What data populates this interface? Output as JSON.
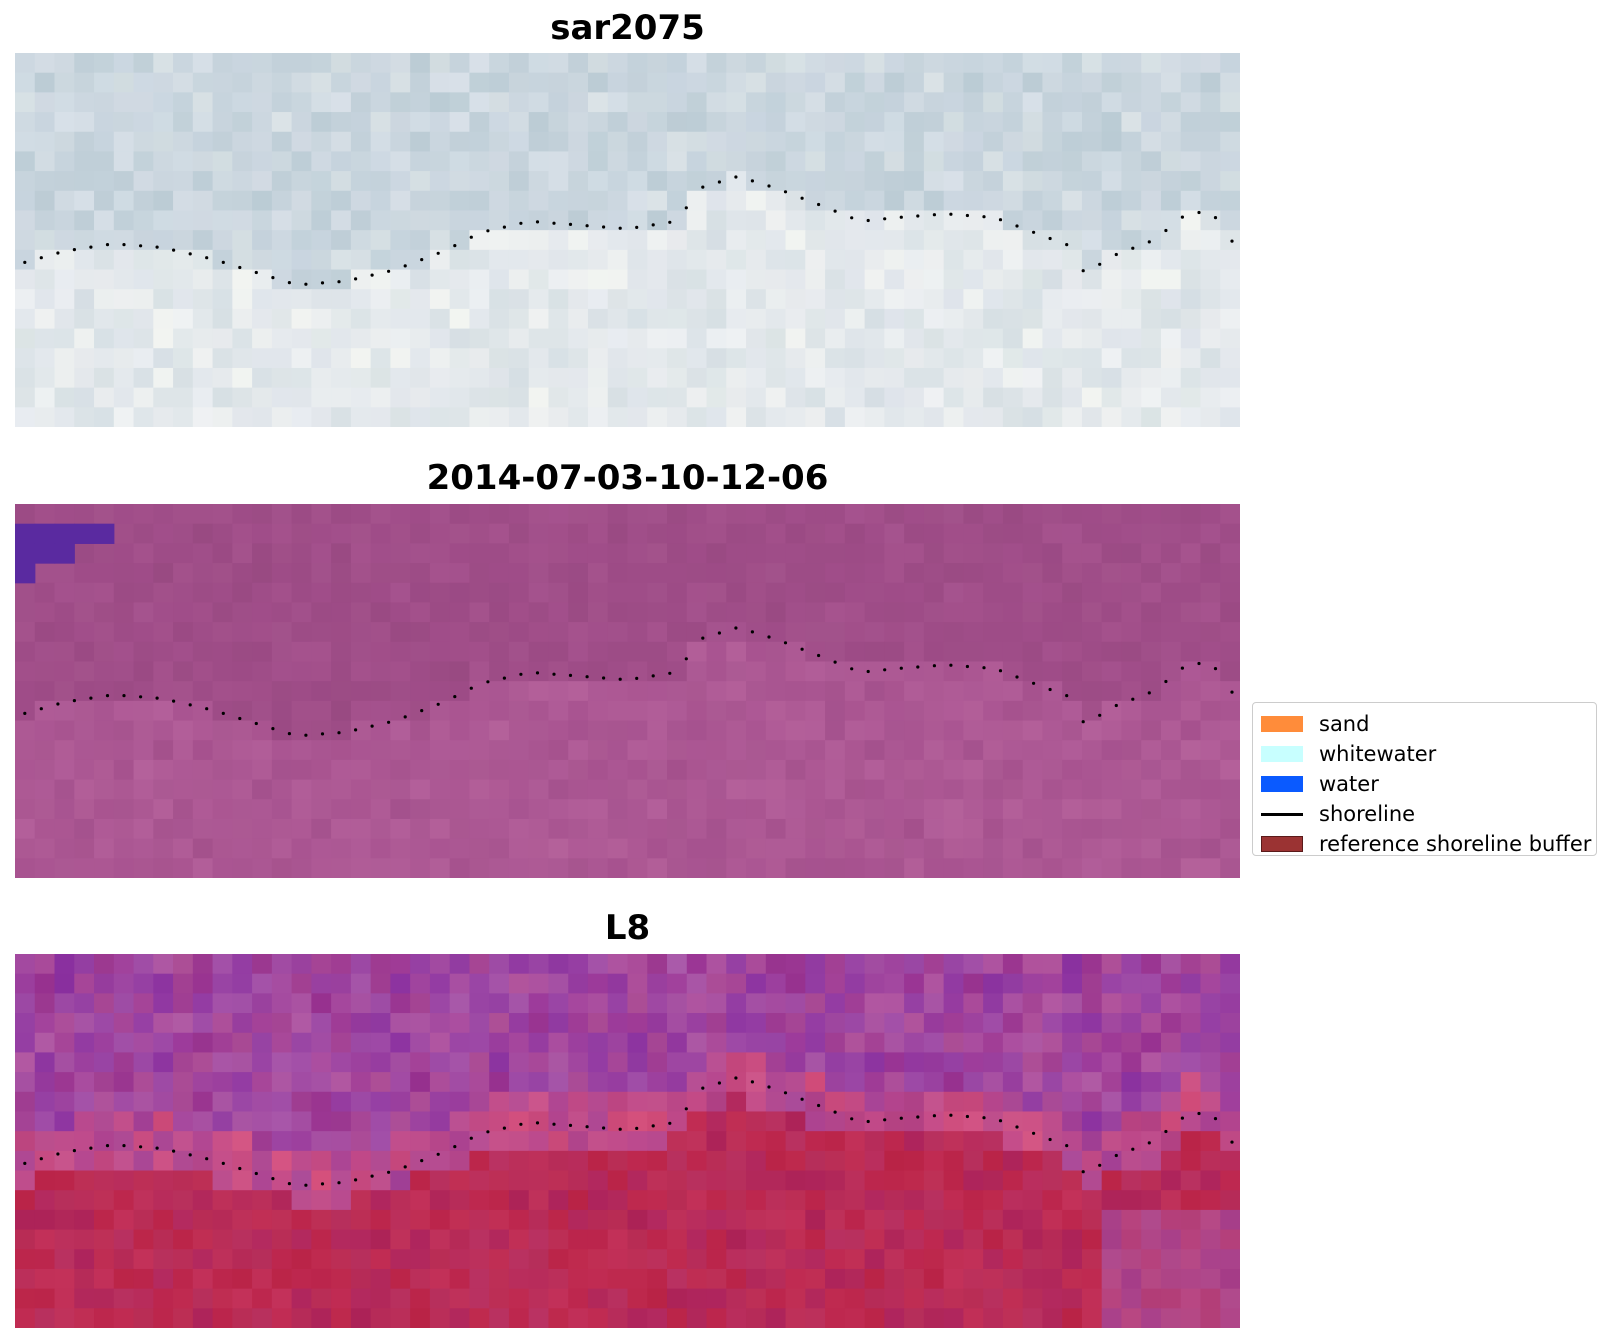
{
  "panels": [
    {
      "title": "sar2075",
      "palette": [
        [
          205,
          216,
          225
        ],
        [
          189,
          205,
          214
        ],
        [
          215,
          222,
          230
        ],
        [
          230,
          234,
          238
        ],
        [
          198,
          213,
          219
        ],
        [
          220,
          224,
          232
        ],
        [
          244,
          246,
          242
        ],
        [
          209,
          218,
          230
        ],
        [
          181,
          199,
          208
        ],
        [
          236,
          240,
          246
        ]
      ]
    },
    {
      "title": "2014-07-03-10-12-06",
      "palette": [
        [
          160,
          77,
          137
        ],
        [
          154,
          74,
          131
        ],
        [
          168,
          83,
          144
        ],
        [
          176,
          92,
          150
        ],
        [
          150,
          72,
          128
        ],
        [
          172,
          88,
          148
        ],
        [
          184,
          101,
          158
        ],
        [
          163,
          80,
          140
        ],
        [
          158,
          76,
          135
        ],
        [
          180,
          96,
          154
        ]
      ],
      "water_color": "#5a2aa0"
    },
    {
      "title": "L8",
      "palette": [
        [
          168,
          70,
          150
        ],
        [
          180,
          80,
          140
        ],
        [
          140,
          50,
          160
        ],
        [
          120,
          30,
          150
        ],
        [
          200,
          90,
          140
        ],
        [
          190,
          40,
          80
        ],
        [
          205,
          60,
          100
        ],
        [
          185,
          35,
          70
        ],
        [
          170,
          90,
          170
        ],
        [
          215,
          85,
          130
        ]
      ]
    }
  ],
  "legend": {
    "items": [
      {
        "label": "sand",
        "color": "#ff8c3a",
        "kind": "patch"
      },
      {
        "label": "whitewater",
        "color": "#c8ffff",
        "kind": "patch"
      },
      {
        "label": "water",
        "color": "#0a5aff",
        "kind": "patch"
      },
      {
        "label": "shoreline",
        "color": "#000000",
        "kind": "line"
      },
      {
        "label": "reference shoreline buffer",
        "color": "#9b3333",
        "kind": "patch"
      }
    ]
  },
  "shoreline_color": "#000000"
}
